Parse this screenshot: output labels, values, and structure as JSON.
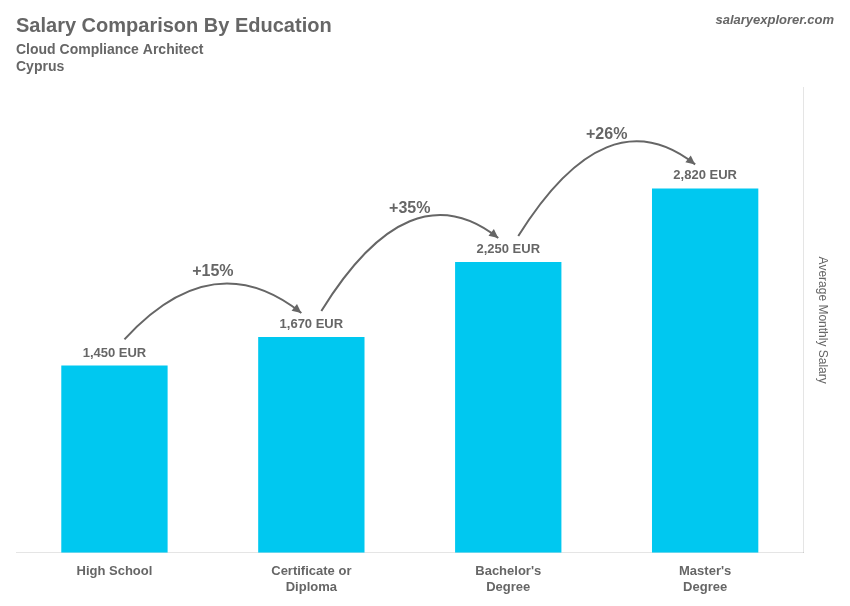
{
  "chart_data": {
    "type": "bar",
    "title": "Salary Comparison By Education",
    "subtitle": [
      "Cloud Compliance Architect",
      "Cyprus"
    ],
    "source": [
      "salary",
      "explorer.com"
    ],
    "ylabel": "Average Monthly Salary",
    "categories": [
      "High School",
      "Certificate or\nDiploma",
      "Bachelor's\nDegree",
      "Master's\nDegree"
    ],
    "values": [
      1450,
      1670,
      2250,
      2820
    ],
    "value_labels": [
      "1,450 EUR",
      "1,670 EUR",
      "2,250 EUR",
      "2,820 EUR"
    ],
    "data_labels": true,
    "annotations": [
      {
        "text": "+15%",
        "from": "High School",
        "to": "Certificate or\nDiploma"
      },
      {
        "text": "+35%",
        "from": "Certificate or\nDiploma",
        "to": "Bachelor's\nDegree"
      },
      {
        "text": "+26%",
        "from": "Bachelor's\nDegree",
        "to": "Master's\nDegree"
      }
    ],
    "color": "#00c8f0",
    "ylim": [
      0,
      3600
    ],
    "grid": false,
    "tick_labels": "x"
  }
}
